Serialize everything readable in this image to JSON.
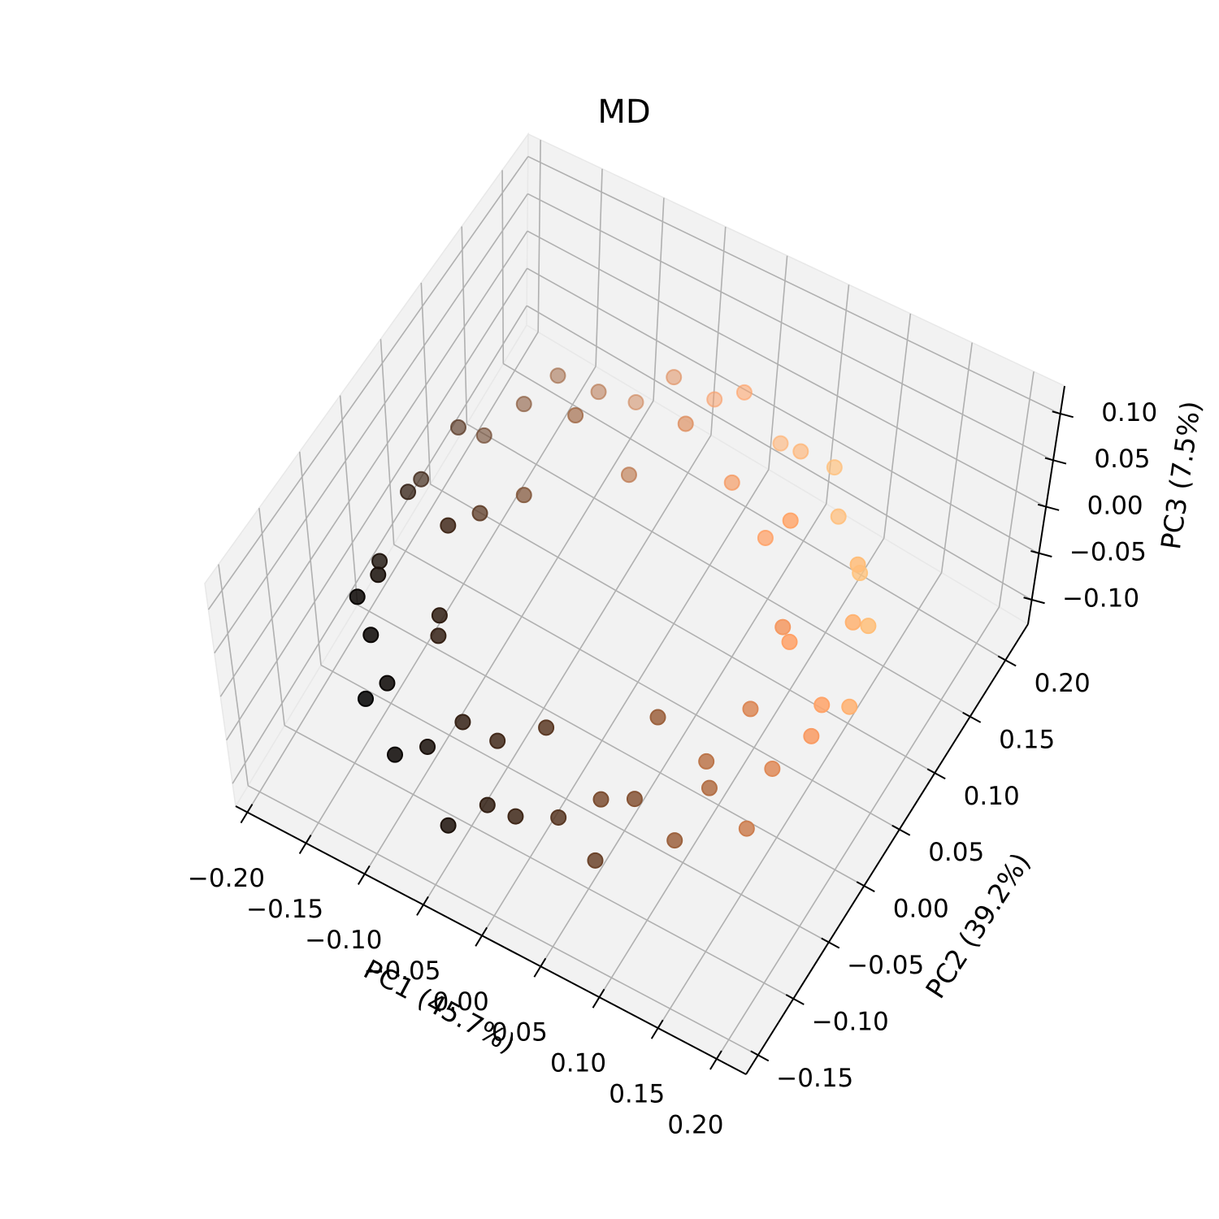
{
  "chart_data": {
    "type": "scatter3d",
    "title": "MD",
    "xlabel": "PC1 (45.7%)",
    "ylabel": "PC2 (39.2%)",
    "zlabel": "PC3 (7.5%)",
    "xlim": [
      -0.21,
      0.225
    ],
    "ylim": [
      -0.167,
      0.232
    ],
    "zlim": [
      -0.126,
      0.13
    ],
    "xticks": [
      {
        "value": -0.2,
        "label": "−0.20"
      },
      {
        "value": -0.15,
        "label": "−0.15"
      },
      {
        "value": -0.1,
        "label": "−0.10"
      },
      {
        "value": -0.05,
        "label": "−0.05"
      },
      {
        "value": 0,
        "label": "0.00"
      },
      {
        "value": 0.05,
        "label": "0.05"
      },
      {
        "value": 0.1,
        "label": "0.10"
      },
      {
        "value": 0.15,
        "label": "0.15"
      },
      {
        "value": 0.2,
        "label": "0.20"
      }
    ],
    "yticks": [
      {
        "value": -0.15,
        "label": "−0.15"
      },
      {
        "value": -0.1,
        "label": "−0.10"
      },
      {
        "value": -0.05,
        "label": "−0.05"
      },
      {
        "value": 0,
        "label": "0.00"
      },
      {
        "value": 0.05,
        "label": "0.05"
      },
      {
        "value": 0.1,
        "label": "0.10"
      },
      {
        "value": 0.15,
        "label": "0.15"
      },
      {
        "value": 0.2,
        "label": "0.20"
      }
    ],
    "zticks": [
      {
        "value": -0.1,
        "label": "−0.10"
      },
      {
        "value": -0.05,
        "label": "−0.05"
      },
      {
        "value": 0,
        "label": "0.00"
      },
      {
        "value": 0.05,
        "label": "0.05"
      },
      {
        "value": 0.1,
        "label": "0.10"
      }
    ],
    "grid": true,
    "cmap": "copper",
    "series": [
      {
        "x": [
          0.17,
          0.178,
          0.162,
          0.16,
          0.138,
          0.127,
          0.1,
          0.082,
          0.053,
          0.028,
          0.0,
          -0.028,
          -0.053,
          -0.082,
          -0.1,
          -0.127,
          -0.138,
          -0.16,
          -0.162,
          -0.178,
          -0.17,
          -0.178,
          -0.162,
          -0.16,
          -0.138,
          -0.127,
          -0.1,
          -0.082,
          -0.053,
          -0.028,
          0.0,
          0.028,
          0.053,
          0.082,
          0.1,
          0.127,
          0.138,
          0.16,
          0.162,
          0.178,
          0.124,
          0.111,
          0.088,
          0.057,
          0.02,
          -0.02,
          -0.057,
          -0.088,
          -0.111,
          -0.124,
          -0.124,
          -0.111,
          -0.088,
          -0.057,
          -0.02,
          0.02,
          0.057,
          0.088,
          0.111,
          0.124
        ],
        "y": [
          0.015,
          0.043,
          0.068,
          0.097,
          0.115,
          0.142,
          0.153,
          0.175,
          0.177,
          0.193,
          0.185,
          0.193,
          0.177,
          0.175,
          0.153,
          0.142,
          0.115,
          0.097,
          0.068,
          0.043,
          0.015,
          -0.013,
          -0.038,
          -0.067,
          -0.085,
          -0.112,
          -0.123,
          -0.145,
          -0.147,
          -0.163,
          -0.155,
          -0.163,
          -0.147,
          -0.145,
          -0.123,
          -0.112,
          -0.085,
          -0.067,
          -0.038,
          -0.013,
          0.035,
          0.072,
          0.103,
          0.126,
          0.139,
          0.139,
          0.126,
          0.103,
          0.072,
          0.035,
          -0.005,
          -0.042,
          -0.073,
          -0.096,
          -0.109,
          -0.109,
          -0.096,
          -0.073,
          -0.042,
          -0.005
        ],
        "z": [
          0.01,
          -0.02,
          0.03,
          -0.01,
          0.02,
          -0.03,
          0.0,
          0.015,
          0.01,
          -0.02,
          0.03,
          -0.01,
          0.02,
          -0.03,
          0.0,
          0.015,
          0.01,
          -0.02,
          0.03,
          -0.01,
          0.02,
          -0.03,
          0.0,
          0.015,
          0.01,
          -0.02,
          0.03,
          -0.01,
          0.02,
          -0.03,
          0.0,
          0.015,
          0.01,
          -0.02,
          0.03,
          -0.01,
          0.02,
          -0.03,
          0.0,
          0.015,
          0.04,
          -0.03,
          0.05,
          -0.02,
          0.0,
          0.04,
          -0.03,
          0.05,
          -0.02,
          0.0,
          0.04,
          -0.03,
          0.05,
          -0.02,
          0.0,
          0.04,
          -0.03,
          0.05,
          -0.02,
          0.0
        ],
        "c": [
          0.82,
          0.89,
          0.9,
          0.96,
          0.95,
          0.98,
          0.95,
          0.96,
          0.9,
          0.89,
          0.82,
          0.78,
          0.7,
          0.64,
          0.56,
          0.49,
          0.42,
          0.34,
          0.28,
          0.2,
          0.16,
          0.09,
          0.08,
          0.03,
          0.03,
          0.0,
          0.03,
          0.03,
          0.08,
          0.09,
          0.16,
          0.2,
          0.28,
          0.34,
          0.42,
          0.49,
          0.56,
          0.64,
          0.7,
          0.78,
          0.77,
          0.81,
          0.83,
          0.81,
          0.77,
          0.69,
          0.59,
          0.49,
          0.39,
          0.29,
          0.21,
          0.17,
          0.15,
          0.17,
          0.21,
          0.29,
          0.39,
          0.49,
          0.59,
          0.69
        ]
      }
    ]
  }
}
